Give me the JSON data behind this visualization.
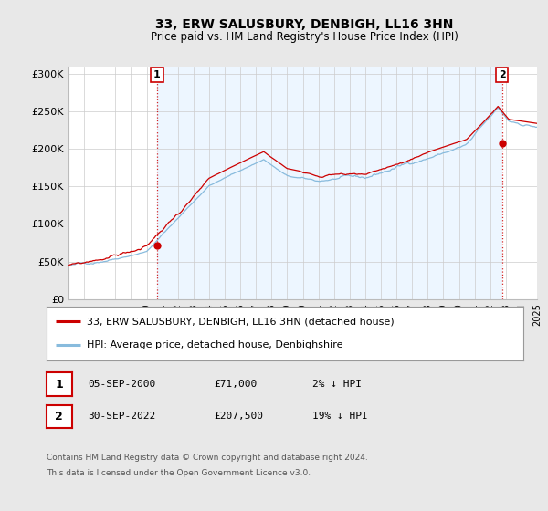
{
  "title": "33, ERW SALUSBURY, DENBIGH, LL16 3HN",
  "subtitle": "Price paid vs. HM Land Registry's House Price Index (HPI)",
  "ylim": [
    0,
    310000
  ],
  "yticks": [
    0,
    50000,
    100000,
    150000,
    200000,
    250000,
    300000
  ],
  "ytick_labels": [
    "£0",
    "£50K",
    "£100K",
    "£150K",
    "£200K",
    "£250K",
    "£300K"
  ],
  "sale1_date_num": 2000.67,
  "sale1_price": 71000,
  "sale1_label": "1",
  "sale2_date_num": 2022.75,
  "sale2_price": 207500,
  "sale2_label": "2",
  "hpi_color": "#88bbdd",
  "price_color": "#cc0000",
  "vline_color": "#cc0000",
  "shade_color": "#ddeeff",
  "annotation_box_color": "#cc0000",
  "legend_label_price": "33, ERW SALUSBURY, DENBIGH, LL16 3HN (detached house)",
  "legend_label_hpi": "HPI: Average price, detached house, Denbighshire",
  "table_row1_num": "1",
  "table_row1_date": "05-SEP-2000",
  "table_row1_price": "£71,000",
  "table_row1_hpi": "2% ↓ HPI",
  "table_row2_num": "2",
  "table_row2_date": "30-SEP-2022",
  "table_row2_price": "£207,500",
  "table_row2_hpi": "19% ↓ HPI",
  "footnote_line1": "Contains HM Land Registry data © Crown copyright and database right 2024.",
  "footnote_line2": "This data is licensed under the Open Government Licence v3.0.",
  "background_color": "#e8e8e8",
  "plot_bg_color": "#ffffff",
  "grid_color": "#cccccc",
  "xmin": 1995,
  "xmax": 2025
}
